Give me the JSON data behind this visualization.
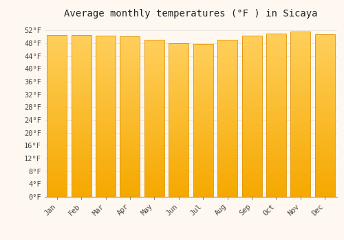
{
  "title": "Average monthly temperatures (°F ) in Sicaya",
  "months": [
    "Jan",
    "Feb",
    "Mar",
    "Apr",
    "May",
    "Jun",
    "Jul",
    "Aug",
    "Sep",
    "Oct",
    "Nov",
    "Dec"
  ],
  "values": [
    50.5,
    50.6,
    50.4,
    50.1,
    49.0,
    48.1,
    47.8,
    49.0,
    50.4,
    51.0,
    51.6,
    50.7
  ],
  "bar_color_bottom": "#F5A800",
  "bar_color_top": "#FFCF5C",
  "bar_edge_color": "#E09000",
  "background_color": "#FFF8F0",
  "grid_color": "#E0E0E0",
  "title_fontsize": 10,
  "tick_fontsize": 7.5,
  "ylim": [
    0,
    54
  ],
  "yticks": [
    0,
    4,
    8,
    12,
    16,
    20,
    24,
    28,
    32,
    36,
    40,
    44,
    48,
    52
  ],
  "ytick_labels": [
    "0°F",
    "4°F",
    "8°F",
    "12°F",
    "16°F",
    "20°F",
    "24°F",
    "28°F",
    "32°F",
    "36°F",
    "40°F",
    "44°F",
    "48°F",
    "52°F"
  ]
}
